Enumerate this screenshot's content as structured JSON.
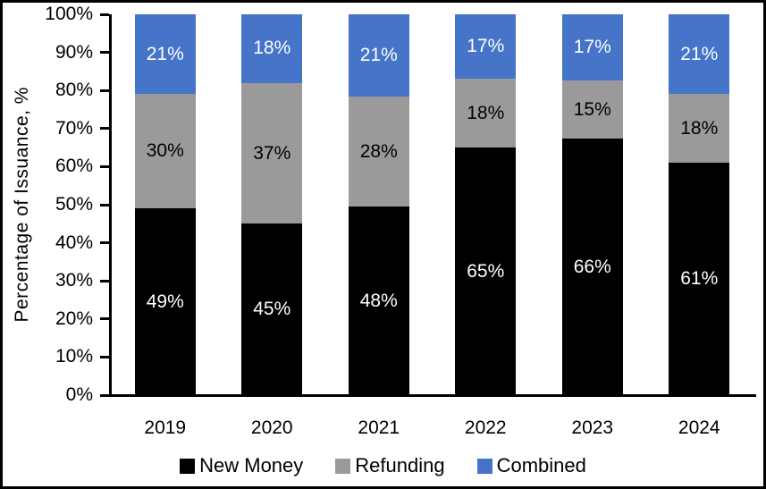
{
  "chart_data": {
    "type": "bar",
    "stacked": true,
    "title": "",
    "xlabel": "",
    "ylabel": "Percentage of Issuance, %",
    "ylim": [
      0,
      100
    ],
    "ytick_step": 10,
    "ytick_labels": [
      "0%",
      "10%",
      "20%",
      "30%",
      "40%",
      "50%",
      "60%",
      "70%",
      "80%",
      "90%",
      "100%"
    ],
    "categories": [
      "2019",
      "2020",
      "2021",
      "2022",
      "2023",
      "2024"
    ],
    "series": [
      {
        "name": "New Money",
        "color": "#000000",
        "label_color": "#ffffff",
        "values": [
          49,
          45,
          48,
          65,
          66,
          61
        ],
        "labels": [
          "49%",
          "45%",
          "48%",
          "65%",
          "66%",
          "61%"
        ]
      },
      {
        "name": "Refunding",
        "color": "#9A9A9A",
        "label_color": "#000000",
        "values": [
          30,
          37,
          28,
          18,
          15,
          18
        ],
        "labels": [
          "30%",
          "37%",
          "28%",
          "18%",
          "15%",
          "18%"
        ]
      },
      {
        "name": "Combined",
        "color": "#4574C8",
        "label_color": "#ffffff",
        "values": [
          21,
          18,
          21,
          17,
          17,
          21
        ],
        "labels": [
          "21%",
          "18%",
          "21%",
          "17%",
          "17%",
          "21%"
        ]
      }
    ],
    "legend_position": "bottom",
    "grid": false,
    "axis_color": "#000000",
    "background": "#ffffff"
  }
}
